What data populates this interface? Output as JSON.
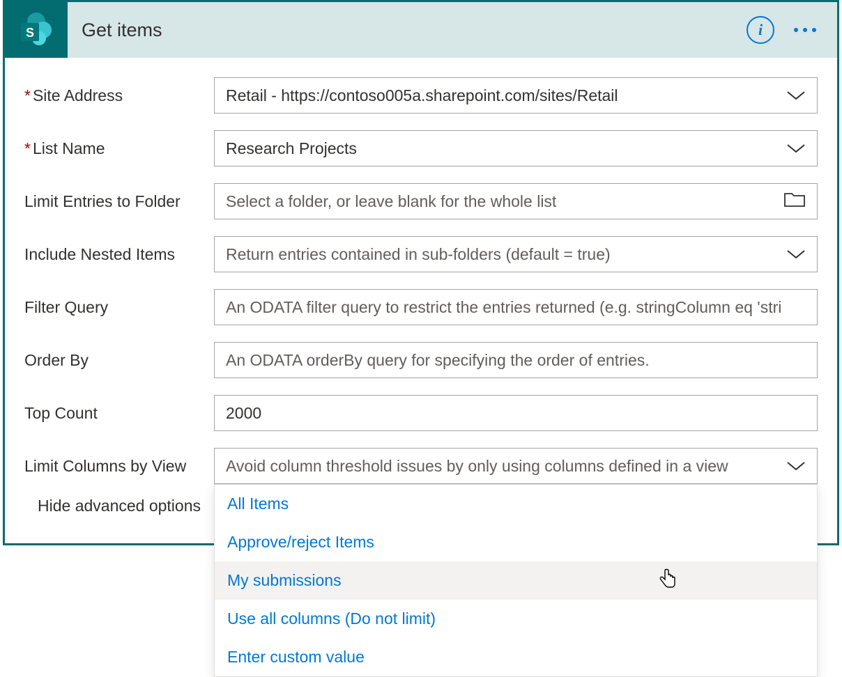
{
  "header": {
    "title": "Get items",
    "icon_letter": "S",
    "tile_bg": "#036c70",
    "accent_color": "#0078d4",
    "header_bg": "#d7e6e6"
  },
  "fields": {
    "site_address": {
      "label": "Site Address",
      "required": true,
      "value": "Retail - https://contoso005a.sharepoint.com/sites/Retail"
    },
    "list_name": {
      "label": "List Name",
      "required": true,
      "value": "Research Projects"
    },
    "limit_folder": {
      "label": "Limit Entries to Folder",
      "placeholder": "Select a folder, or leave blank for the whole list"
    },
    "include_nested": {
      "label": "Include Nested Items",
      "placeholder": "Return entries contained in sub-folders (default = true)"
    },
    "filter_query": {
      "label": "Filter Query",
      "placeholder": "An ODATA filter query to restrict the entries returned (e.g. stringColumn eq 'stri"
    },
    "order_by": {
      "label": "Order By",
      "placeholder": "An ODATA orderBy query for specifying the order of entries."
    },
    "top_count": {
      "label": "Top Count",
      "value": "2000"
    },
    "limit_columns": {
      "label": "Limit Columns by View",
      "placeholder": "Avoid column threshold issues by only using columns defined in a view"
    }
  },
  "advanced_toggle": "Hide advanced options",
  "dropdown": {
    "options": [
      "All Items",
      "Approve/reject Items",
      "My submissions",
      "Use all columns (Do not limit)",
      "Enter custom value"
    ],
    "hovered_index": 2
  }
}
